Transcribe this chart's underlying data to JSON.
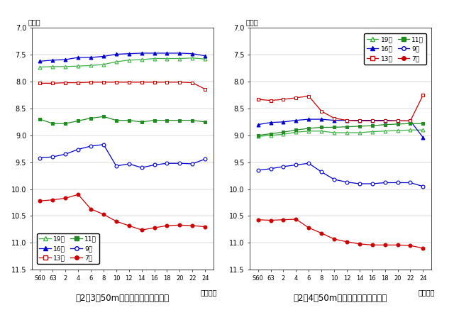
{
  "x_labels": [
    "S60",
    "63",
    "2",
    "4",
    "6",
    "8",
    "10",
    "12",
    "14",
    "16",
    "18",
    "20",
    "22",
    "24"
  ],
  "male": {
    "age19": [
      7.73,
      7.72,
      7.72,
      7.71,
      7.7,
      7.68,
      7.63,
      7.6,
      7.59,
      7.57,
      7.57,
      7.57,
      7.56,
      7.58
    ],
    "age16": [
      7.62,
      7.6,
      7.59,
      7.55,
      7.55,
      7.53,
      7.49,
      7.48,
      7.47,
      7.47,
      7.47,
      7.47,
      7.48,
      7.52
    ],
    "age13": [
      8.03,
      8.03,
      8.02,
      8.02,
      8.01,
      8.01,
      8.01,
      8.01,
      8.01,
      8.01,
      8.01,
      8.01,
      8.02,
      8.14
    ],
    "age11": [
      8.7,
      8.78,
      8.78,
      8.73,
      8.68,
      8.65,
      8.72,
      8.72,
      8.75,
      8.72,
      8.72,
      8.72,
      8.72,
      8.75
    ],
    "age9": [
      9.42,
      9.4,
      9.35,
      9.26,
      9.2,
      9.17,
      9.57,
      9.53,
      9.6,
      9.55,
      9.52,
      9.52,
      9.53,
      9.44
    ],
    "age7": [
      10.22,
      10.2,
      10.17,
      10.1,
      10.37,
      10.47,
      10.6,
      10.68,
      10.76,
      10.72,
      10.68,
      10.67,
      10.68,
      10.7
    ]
  },
  "female": {
    "age19": [
      9.02,
      9.0,
      8.98,
      8.94,
      8.92,
      8.92,
      8.95,
      8.95,
      8.95,
      8.93,
      8.92,
      8.91,
      8.9,
      8.9
    ],
    "age16": [
      8.8,
      8.76,
      8.75,
      8.72,
      8.7,
      8.7,
      8.72,
      8.72,
      8.72,
      8.72,
      8.72,
      8.73,
      8.73,
      9.04
    ],
    "age13": [
      8.33,
      8.35,
      8.33,
      8.3,
      8.27,
      8.55,
      8.68,
      8.72,
      8.73,
      8.73,
      8.73,
      8.73,
      8.73,
      8.25
    ],
    "age11": [
      9.0,
      8.97,
      8.94,
      8.9,
      8.87,
      8.85,
      8.85,
      8.84,
      8.83,
      8.82,
      8.8,
      8.79,
      8.78,
      8.78
    ],
    "age9": [
      9.65,
      9.62,
      9.58,
      9.55,
      9.52,
      9.68,
      9.82,
      9.87,
      9.9,
      9.9,
      9.88,
      9.88,
      9.88,
      9.95
    ],
    "age7": [
      10.57,
      10.58,
      10.57,
      10.56,
      10.72,
      10.82,
      10.93,
      10.98,
      11.02,
      11.04,
      11.04,
      11.04,
      11.05,
      11.1
    ]
  },
  "title_male": "図2－3　50m走の年次推移（男子）",
  "title_female": "図2－4　50m走の年次推移（女子）",
  "ylabel": "（秒）",
  "xlabel": "（年度）",
  "ylim": [
    7.0,
    11.5
  ],
  "yticks": [
    7.0,
    7.5,
    8.0,
    8.5,
    9.0,
    9.5,
    10.0,
    10.5,
    11.0,
    11.5
  ],
  "color_green": "#3cb043",
  "color_blue": "#0000cd",
  "color_red": "#cc0000",
  "color_darkgreen": "#228B22",
  "legend_labels": [
    "19歳",
    "16歳",
    "13歳",
    "11歳",
    "9歳",
    "7歳"
  ]
}
